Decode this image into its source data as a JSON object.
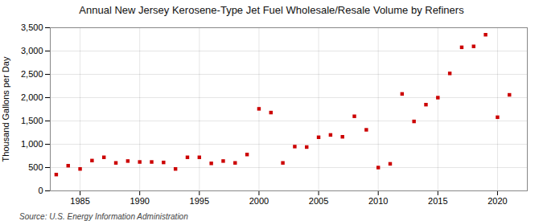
{
  "chart_data": {
    "type": "scatter",
    "title": "Annual New Jersey Kerosene-Type Jet Fuel Wholesale/Resale Volume by Refiners",
    "ylabel": "Thousand Gallons per Day",
    "source": "Source: U.S. Energy Information Administration",
    "x": [
      1983,
      1984,
      1985,
      1986,
      1987,
      1988,
      1989,
      1990,
      1991,
      1992,
      1993,
      1994,
      1995,
      1996,
      1997,
      1998,
      1999,
      2000,
      2001,
      2002,
      2003,
      2004,
      2005,
      2006,
      2007,
      2008,
      2009,
      2010,
      2011,
      2012,
      2013,
      2014,
      2015,
      2016,
      2017,
      2018,
      2019,
      2020,
      2021
    ],
    "values": [
      350,
      540,
      470,
      650,
      720,
      600,
      640,
      620,
      620,
      610,
      470,
      720,
      720,
      590,
      640,
      600,
      780,
      1760,
      1680,
      600,
      950,
      940,
      1150,
      1200,
      1160,
      1600,
      1310,
      500,
      580,
      2080,
      1490,
      1850,
      2000,
      2520,
      3080,
      3100,
      3350,
      1580,
      2060
    ],
    "color": "#cc0000",
    "marker": "square",
    "xlim": [
      1982.5,
      2022.5
    ],
    "xticks": [
      1985,
      1990,
      1995,
      2000,
      2005,
      2010,
      2015,
      2020
    ],
    "ylim": [
      0,
      3500
    ],
    "yticks": [
      0,
      500,
      {
        "value": 1000,
        "label": "1,000"
      },
      {
        "value": 1500,
        "label": "1,500"
      },
      {
        "value": 2000,
        "label": "2,000"
      },
      {
        "value": 2500,
        "label": "2,500"
      },
      {
        "value": 3000,
        "label": "3,000"
      },
      {
        "value": 3500,
        "label": "3,500"
      }
    ],
    "grid": true
  }
}
